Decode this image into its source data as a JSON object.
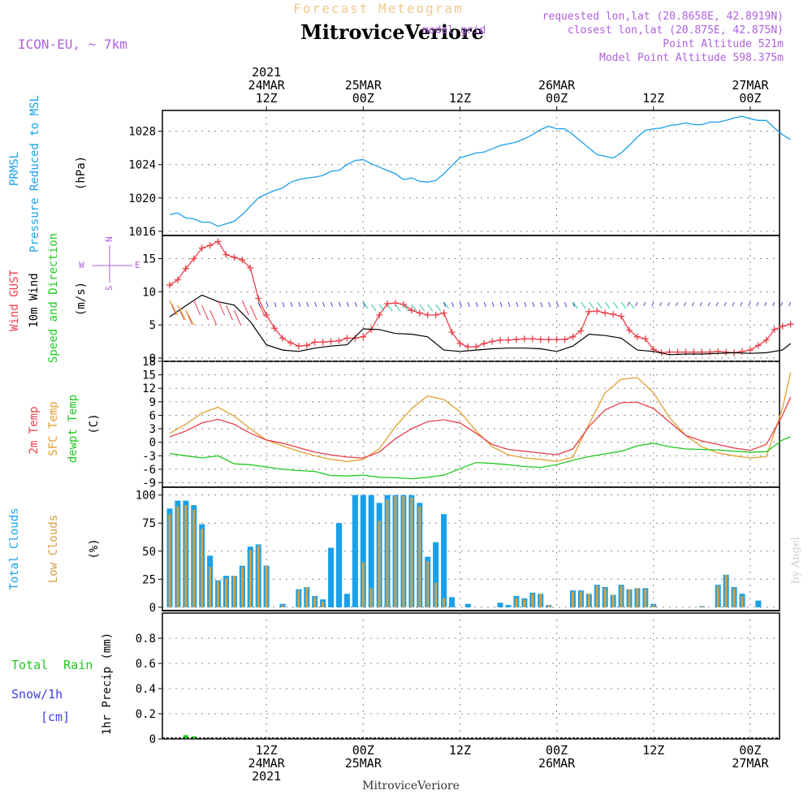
{
  "header": {
    "top_title": "Forecast Meteogram",
    "station": "MitroviceVeriore",
    "model": "ICON-EU, ~ 7km",
    "requested": "requested lon,lat (20.8658E, 42.8919N)",
    "closest": "closest lon,lat (20.875E, 42.875N)",
    "closest_prefix": "model grid",
    "altitude": "Point Altitude 521m",
    "model_altitude": "Model Point Altitude 598.375m",
    "footer_station": "MitroviceVeriore",
    "credit": "by Angel"
  },
  "time_axis": {
    "top_labels": [
      {
        "hour": 12,
        "lines": [
          "2021",
          "24MAR",
          "12Z"
        ]
      },
      {
        "hour": 24,
        "lines": [
          "25MAR",
          "00Z"
        ]
      },
      {
        "hour": 36,
        "lines": [
          "12Z"
        ]
      },
      {
        "hour": 48,
        "lines": [
          "26MAR",
          "00Z"
        ]
      },
      {
        "hour": 60,
        "lines": [
          "12Z"
        ]
      },
      {
        "hour": 72,
        "lines": [
          "27MAR",
          "00Z"
        ]
      }
    ],
    "bottom_labels": [
      {
        "hour": 12,
        "lines": [
          "12Z",
          "24MAR",
          "2021"
        ]
      },
      {
        "hour": 24,
        "lines": [
          "00Z",
          "25MAR"
        ]
      },
      {
        "hour": 36,
        "lines": [
          "12Z"
        ]
      },
      {
        "hour": 48,
        "lines": [
          "00Z",
          "26MAR"
        ]
      },
      {
        "hour": 60,
        "lines": [
          "12Z"
        ]
      },
      {
        "hour": 72,
        "lines": [
          "00Z",
          "27MAR"
        ]
      }
    ]
  },
  "panels": {
    "pressure": {
      "label1": "PRMSL",
      "label2": "Pressure Reduced to MSL",
      "unit": "(hPa)",
      "ticks": [
        "1016",
        "1020",
        "1024",
        "1028"
      ]
    },
    "wind": {
      "label_gust": "Wind GUST",
      "label_wind1": "10m Wind",
      "label_wind2": "Speed and Direction",
      "unit": "(m/s)",
      "ticks": [
        "0",
        "5",
        "10",
        "15"
      ],
      "compass_w": "W",
      "compass_e": "E",
      "compass_n": "N",
      "compass_s": "S"
    },
    "temp": {
      "label_t2m": "2m Temp",
      "label_sfc": "SFC Temp",
      "label_dew": "dewpt Temp",
      "unit": "(C)",
      "ticks": [
        "-9",
        "-6",
        "-3",
        "0",
        "3",
        "6",
        "9",
        "12",
        "15",
        "18"
      ]
    },
    "clouds": {
      "label_total": "Total Clouds",
      "label_low": "Low Clouds",
      "unit": "(%)",
      "ticks": [
        "0",
        "25",
        "50",
        "75",
        "100"
      ]
    },
    "precip": {
      "label_rain": "Total Rain",
      "label_snow": "Snow/1h",
      "label_cm": "[cm]",
      "unit": "1hr Precip (mm)",
      "ticks": [
        "0",
        "0.2",
        "0.4",
        "0.6",
        "0.8"
      ]
    }
  },
  "colors": {
    "pressure": "#1aa0e8",
    "gust": "#e8404a",
    "wind": "#000000",
    "t2m": "#e8404a",
    "sfc": "#e0a030",
    "dew": "#20c820",
    "total_cloud": "#1aa0e8",
    "low_cloud": "#d4a040",
    "rain": "#20c820",
    "snow": "#4040e0",
    "label_purple": "#b060e0",
    "top_title": "#f0c890"
  },
  "chart_data": [
    {
      "type": "line",
      "name": "PRMSL",
      "ylim": [
        1015.5,
        1030.5
      ],
      "x": [
        0,
        1,
        2,
        3,
        4,
        5,
        6,
        7,
        8,
        9,
        10,
        11,
        12,
        13,
        14,
        15,
        16,
        17,
        18,
        19,
        20,
        21,
        22,
        23,
        24,
        25,
        26,
        27,
        28,
        29,
        30,
        31,
        32,
        33,
        34,
        35,
        36,
        37,
        38,
        39,
        40,
        41,
        42,
        43,
        44,
        45,
        46,
        47,
        48,
        49,
        50,
        51,
        52,
        53,
        54,
        55,
        56,
        57,
        58,
        59,
        60,
        61,
        62,
        63,
        64,
        65,
        66,
        67,
        68,
        69,
        70,
        71,
        72,
        73,
        74,
        75,
        76,
        77
      ],
      "values": [
        1018,
        1018.2,
        1017.6,
        1017.5,
        1017.1,
        1017.1,
        1016.6,
        1016.9,
        1017.2,
        1018.0,
        1019.0,
        1020.0,
        1020.5,
        1020.9,
        1021.2,
        1021.9,
        1022.2,
        1022.4,
        1022.5,
        1022.7,
        1023.2,
        1023.3,
        1024.0,
        1024.5,
        1024.6,
        1024.1,
        1023.7,
        1023.3,
        1022.9,
        1022.2,
        1022.4,
        1022.0,
        1021.9,
        1022.1,
        1022.9,
        1023.9,
        1024.8,
        1025.1,
        1025.4,
        1025.5,
        1025.9,
        1026.3,
        1026.5,
        1026.7,
        1027.1,
        1027.6,
        1028.2,
        1028.6,
        1028.3,
        1028.3,
        1027.6,
        1026.8,
        1026.0,
        1025.2,
        1025.0,
        1024.8,
        1025.4,
        1026.3,
        1027.3,
        1028.1,
        1028.3,
        1028.4,
        1028.7,
        1028.8,
        1029.0,
        1028.8,
        1028.8,
        1029.1,
        1029.1,
        1029.3,
        1029.6,
        1029.8,
        1029.5,
        1029.3,
        1029.3,
        1028.4,
        1027.6,
        1027.0
      ]
    },
    {
      "type": "line",
      "name": "Wind GUST",
      "ylim": [
        0,
        18
      ],
      "x": [
        0,
        1,
        2,
        3,
        4,
        5,
        6,
        7,
        8,
        9,
        10,
        11,
        12,
        13,
        14,
        15,
        16,
        17,
        18,
        19,
        20,
        21,
        22,
        23,
        24,
        25,
        26,
        27,
        28,
        29,
        30,
        31,
        32,
        33,
        34,
        35,
        36,
        37,
        38,
        39,
        40,
        41,
        42,
        43,
        44,
        45,
        46,
        47,
        48,
        49,
        50,
        51,
        52,
        53,
        54,
        55,
        56,
        57,
        58,
        59,
        60,
        61,
        62,
        63,
        64,
        65,
        66,
        67,
        68,
        69,
        70,
        71,
        72,
        73,
        74,
        75,
        76,
        77
      ],
      "values": [
        11,
        11.8,
        13.5,
        15.0,
        16.6,
        17.0,
        17.6,
        15.6,
        15.2,
        14.8,
        13.6,
        9.0,
        6.5,
        4.5,
        3.0,
        2.3,
        1.8,
        1.9,
        2.4,
        2.4,
        2.5,
        2.6,
        3.0,
        3.0,
        3.2,
        4.3,
        6.5,
        8.2,
        8.3,
        8.1,
        7.2,
        6.8,
        6.5,
        6.5,
        6.8,
        3.9,
        2.2,
        1.7,
        1.7,
        2.2,
        2.5,
        2.7,
        2.7,
        2.8,
        2.9,
        2.9,
        2.8,
        2.8,
        2.8,
        2.8,
        3.2,
        4.1,
        7.0,
        7.1,
        6.8,
        6.6,
        6.3,
        4.2,
        3.2,
        2.9,
        1.3,
        0.8,
        0.9,
        0.9,
        0.9,
        0.9,
        0.9,
        0.9,
        1.0,
        0.9,
        0.8,
        1.0,
        1.2,
        1.9,
        2.7,
        4.3,
        4.8,
        5.1
      ]
    },
    {
      "type": "line",
      "name": "10m Wind",
      "ylim": [
        0,
        18
      ],
      "x": [
        0,
        2,
        4,
        6,
        8,
        10,
        12,
        14,
        16,
        18,
        20,
        22,
        24,
        26,
        28,
        30,
        32,
        34,
        36,
        38,
        40,
        42,
        44,
        46,
        48,
        50,
        52,
        54,
        56,
        58,
        60,
        62,
        64,
        66,
        68,
        70,
        72,
        74,
        76,
        77
      ],
      "values": [
        6.2,
        7.9,
        9.5,
        8.5,
        8.0,
        5.5,
        2.0,
        1.2,
        1.0,
        1.5,
        1.8,
        2.0,
        4.4,
        4.3,
        3.7,
        3.6,
        3.2,
        1.2,
        1.0,
        1.2,
        1.4,
        1.5,
        1.5,
        1.4,
        1.0,
        1.8,
        3.6,
        3.4,
        3.0,
        1.2,
        1.0,
        0.5,
        0.6,
        0.6,
        0.7,
        0.8,
        0.7,
        0.8,
        1.2,
        2.2
      ]
    },
    {
      "type": "line",
      "name": "2m Temp",
      "ylim": [
        -10,
        18
      ],
      "x": [
        0,
        2,
        4,
        6,
        8,
        10,
        12,
        14,
        16,
        18,
        20,
        22,
        24,
        26,
        28,
        30,
        32,
        34,
        36,
        38,
        40,
        42,
        44,
        46,
        48,
        50,
        52,
        54,
        56,
        58,
        60,
        62,
        64,
        66,
        68,
        70,
        72,
        74,
        76,
        77
      ],
      "values": [
        1.2,
        2.5,
        4.3,
        5.1,
        4.0,
        2.0,
        0.5,
        -0.2,
        -1.2,
        -2.2,
        -2.8,
        -3.3,
        -3.5,
        -2.2,
        0.8,
        3.0,
        4.6,
        5.0,
        4.3,
        2.0,
        -0.5,
        -1.6,
        -2.0,
        -2.4,
        -2.8,
        -1.5,
        3.5,
        7.2,
        8.8,
        8.9,
        7.5,
        4.5,
        1.5,
        0.3,
        -0.5,
        -1.3,
        -1.8,
        -0.5,
        6.0,
        10.0
      ]
    },
    {
      "type": "line",
      "name": "SFC Temp",
      "ylim": [
        -10,
        18
      ],
      "x": [
        0,
        2,
        4,
        6,
        8,
        10,
        12,
        14,
        16,
        18,
        20,
        22,
        24,
        26,
        28,
        30,
        32,
        34,
        36,
        38,
        40,
        42,
        44,
        46,
        48,
        50,
        52,
        54,
        56,
        58,
        60,
        62,
        64,
        66,
        68,
        70,
        72,
        74,
        76,
        77
      ],
      "values": [
        2.0,
        4.0,
        6.5,
        7.8,
        5.8,
        3.0,
        0.5,
        -0.8,
        -2.0,
        -3.0,
        -3.8,
        -4.3,
        -3.8,
        -1.5,
        3.5,
        7.5,
        10.3,
        9.5,
        6.8,
        2.5,
        -1.0,
        -2.8,
        -3.5,
        -3.8,
        -4.3,
        -3.3,
        4.0,
        11.0,
        14.0,
        14.4,
        11.0,
        5.5,
        1.5,
        -1.0,
        -2.4,
        -3.0,
        -3.5,
        -3.2,
        7.5,
        15.5
      ]
    },
    {
      "type": "line",
      "name": "dewpt Temp",
      "ylim": [
        -10,
        18
      ],
      "x": [
        0,
        2,
        4,
        6,
        8,
        10,
        12,
        14,
        16,
        18,
        20,
        22,
        24,
        26,
        28,
        30,
        32,
        34,
        36,
        38,
        40,
        42,
        44,
        46,
        48,
        50,
        52,
        54,
        56,
        58,
        60,
        62,
        64,
        66,
        68,
        70,
        72,
        74,
        76,
        77
      ],
      "values": [
        -2.5,
        -3.0,
        -3.5,
        -3.0,
        -4.8,
        -5.0,
        -5.5,
        -6.0,
        -6.3,
        -6.5,
        -7.4,
        -7.5,
        -7.3,
        -7.8,
        -7.9,
        -8.1,
        -7.8,
        -7.3,
        -5.9,
        -4.5,
        -4.7,
        -5.0,
        -5.4,
        -5.6,
        -5.0,
        -4.0,
        -3.2,
        -2.6,
        -2.0,
        -0.8,
        -0.2,
        -1.0,
        -1.5,
        -1.6,
        -1.7,
        -2.0,
        -2.2,
        -2.1,
        0.5,
        1.2
      ]
    },
    {
      "type": "bar",
      "name": "Total Clouds",
      "ylim": [
        0,
        100
      ],
      "x": [
        0,
        1,
        2,
        3,
        4,
        5,
        6,
        7,
        8,
        9,
        10,
        11,
        12,
        13,
        14,
        15,
        16,
        17,
        18,
        19,
        20,
        21,
        22,
        23,
        24,
        25,
        26,
        27,
        28,
        29,
        30,
        31,
        32,
        33,
        34,
        35,
        36,
        37,
        38,
        39,
        40,
        41,
        42,
        43,
        44,
        45,
        46,
        47,
        48,
        49,
        50,
        51,
        52,
        53,
        54,
        55,
        56,
        57,
        58,
        59,
        60,
        61,
        62,
        63,
        64,
        65,
        66,
        67,
        68,
        69,
        70,
        71,
        72,
        73,
        74,
        75,
        76,
        77
      ],
      "values": [
        88,
        95,
        95,
        91,
        74,
        46,
        24,
        28,
        28,
        37,
        54,
        56,
        37,
        0,
        3,
        0,
        16,
        18,
        10,
        7,
        53,
        75,
        12,
        100,
        100,
        100,
        93,
        100,
        100,
        100,
        100,
        93,
        45,
        58,
        83,
        9,
        0,
        3,
        0,
        0,
        0,
        4,
        2,
        10,
        8,
        13,
        12,
        2,
        0,
        0,
        15,
        15,
        12,
        20,
        18,
        11,
        20,
        16,
        17,
        17,
        3,
        0,
        0,
        0,
        0,
        0,
        1,
        0,
        20,
        29,
        18,
        12,
        0,
        6,
        0,
        0,
        0,
        0
      ],
      "low_values": [
        83,
        90,
        91,
        87,
        70,
        36,
        23,
        26,
        28,
        36,
        51,
        55,
        37,
        0,
        2,
        0,
        15,
        18,
        9,
        5,
        0,
        0,
        0,
        0,
        40,
        17,
        77,
        96,
        99,
        99,
        98,
        90,
        41,
        22,
        8,
        0,
        0,
        0,
        0,
        0,
        0,
        0,
        0,
        8,
        7,
        12,
        12,
        2,
        0,
        0,
        14,
        14,
        12,
        19,
        17,
        11,
        19,
        16,
        17,
        16,
        2,
        0,
        0,
        0,
        0,
        0,
        1,
        0,
        19,
        29,
        17,
        10,
        0,
        0,
        0,
        0,
        0,
        0
      ]
    },
    {
      "type": "bar",
      "name": "1hr Precip",
      "ylim": [
        0,
        1.0
      ],
      "x": [
        2,
        3
      ],
      "values": [
        0.03,
        0.02
      ]
    }
  ]
}
